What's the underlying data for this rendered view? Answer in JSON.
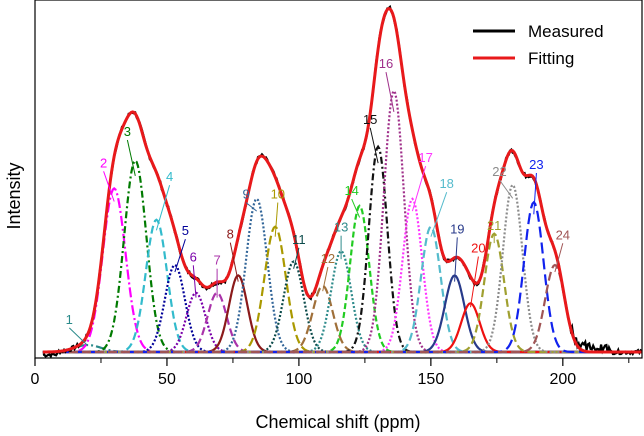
{
  "chart_data": {
    "type": "line",
    "title": "",
    "xlabel": "Chemical shift (ppm)",
    "ylabel": "Intensity",
    "xlim": [
      0,
      230
    ],
    "ylim": [
      0,
      1.0
    ],
    "x_ticks": [
      0,
      50,
      100,
      150,
      200
    ],
    "legend": {
      "placement": "top-right",
      "entries": [
        {
          "name": "Measured",
          "color": "#000000"
        },
        {
          "name": "Fitting",
          "color": "#e8191b"
        }
      ]
    },
    "peaks": [
      {
        "id": "1",
        "center": 20,
        "amp": 0.02,
        "sigma": 5.0,
        "color": "#2a8a8a",
        "dash": "10,3,2,3"
      },
      {
        "id": "2",
        "center": 30,
        "amp": 0.47,
        "sigma": 4.3,
        "color": "#ff00ff",
        "dash": "10,3,2,3"
      },
      {
        "id": "3",
        "center": 38,
        "amp": 0.55,
        "sigma": 4.2,
        "color": "#007a00",
        "dash": "7,3,2,3"
      },
      {
        "id": "4",
        "center": 46,
        "amp": 0.38,
        "sigma": 4.0,
        "color": "#33bbcc",
        "dash": "8,4"
      },
      {
        "id": "5",
        "center": 53,
        "amp": 0.25,
        "sigma": 3.8,
        "color": "#000099",
        "dash": "2,2"
      },
      {
        "id": "6",
        "center": 61,
        "amp": 0.17,
        "sigma": 3.6,
        "color": "#7a00aa",
        "dash": "2,2"
      },
      {
        "id": "7",
        "center": 69,
        "amp": 0.17,
        "sigma": 3.6,
        "color": "#aa33aa",
        "dash": "8,4"
      },
      {
        "id": "8",
        "center": 77,
        "amp": 0.22,
        "sigma": 3.5,
        "color": "#8b1a1a",
        "dash": ""
      },
      {
        "id": "9",
        "center": 84,
        "amp": 0.44,
        "sigma": 4.0,
        "color": "#336699",
        "dash": "2,2"
      },
      {
        "id": "10",
        "center": 91,
        "amp": 0.36,
        "sigma": 4.0,
        "color": "#aa9900",
        "dash": "9,4"
      },
      {
        "id": "11",
        "center": 98,
        "amp": 0.26,
        "sigma": 3.8,
        "color": "#0b4a4a",
        "dash": "2,2"
      },
      {
        "id": "12",
        "center": 109,
        "amp": 0.19,
        "sigma": 3.8,
        "color": "#a0703a",
        "dash": "9,4"
      },
      {
        "id": "13",
        "center": 116,
        "amp": 0.29,
        "sigma": 3.8,
        "color": "#2e8b8b",
        "dash": "2,2"
      },
      {
        "id": "14",
        "center": 123,
        "amp": 0.42,
        "sigma": 3.6,
        "color": "#22cc22",
        "dash": "6,3"
      },
      {
        "id": "15",
        "center": 130,
        "amp": 0.59,
        "sigma": 3.5,
        "color": "#111111",
        "dash": "7,3,2,3"
      },
      {
        "id": "16",
        "center": 136,
        "amp": 0.75,
        "sigma": 3.8,
        "color": "#a0308a",
        "dash": "2,2"
      },
      {
        "id": "17",
        "center": 143,
        "amp": 0.44,
        "sigma": 3.7,
        "color": "#ff33ff",
        "dash": "2,2"
      },
      {
        "id": "18",
        "center": 150,
        "amp": 0.36,
        "sigma": 3.7,
        "color": "#55bbcc",
        "dash": "8,4"
      },
      {
        "id": "19",
        "center": 159,
        "amp": 0.22,
        "sigma": 3.7,
        "color": "#283a8a",
        "dash": ""
      },
      {
        "id": "20",
        "center": 165,
        "amp": 0.14,
        "sigma": 3.5,
        "color": "#ee1111",
        "dash": ""
      },
      {
        "id": "21",
        "center": 174,
        "amp": 0.34,
        "sigma": 3.7,
        "color": "#a0a030",
        "dash": "8,4"
      },
      {
        "id": "22",
        "center": 181,
        "amp": 0.48,
        "sigma": 3.7,
        "color": "#8c8c8c",
        "dash": "2,2"
      },
      {
        "id": "23",
        "center": 189,
        "amp": 0.43,
        "sigma": 3.7,
        "color": "#1122ee",
        "dash": "11,5"
      },
      {
        "id": "24",
        "center": 197,
        "amp": 0.25,
        "sigma": 3.7,
        "color": "#a05555",
        "dash": "9,4"
      }
    ],
    "peak_labels": [
      {
        "text": "1",
        "x": 13,
        "y": 0.075
      },
      {
        "text": "2",
        "x": 26,
        "y": 0.525
      },
      {
        "text": "3",
        "x": 35,
        "y": 0.615
      },
      {
        "text": "4",
        "x": 51,
        "y": 0.485
      },
      {
        "text": "5",
        "x": 57,
        "y": 0.33
      },
      {
        "text": "6",
        "x": 60,
        "y": 0.255
      },
      {
        "text": "7",
        "x": 69,
        "y": 0.245
      },
      {
        "text": "8",
        "x": 74,
        "y": 0.32
      },
      {
        "text": "9",
        "x": 80,
        "y": 0.435
      },
      {
        "text": "10",
        "x": 92,
        "y": 0.435
      },
      {
        "text": "11",
        "x": 100,
        "y": 0.305
      },
      {
        "text": "12",
        "x": 111,
        "y": 0.25
      },
      {
        "text": "13",
        "x": 116,
        "y": 0.34
      },
      {
        "text": "14",
        "x": 120,
        "y": 0.445
      },
      {
        "text": "15",
        "x": 127,
        "y": 0.65
      },
      {
        "text": "16",
        "x": 133,
        "y": 0.81
      },
      {
        "text": "17",
        "x": 148,
        "y": 0.54
      },
      {
        "text": "18",
        "x": 156,
        "y": 0.465
      },
      {
        "text": "19",
        "x": 160,
        "y": 0.335
      },
      {
        "text": "20",
        "x": 168,
        "y": 0.28
      },
      {
        "text": "21",
        "x": 174,
        "y": 0.345
      },
      {
        "text": "22",
        "x": 176,
        "y": 0.5
      },
      {
        "text": "23",
        "x": 190,
        "y": 0.52
      },
      {
        "text": "24",
        "x": 200,
        "y": 0.318
      }
    ]
  }
}
